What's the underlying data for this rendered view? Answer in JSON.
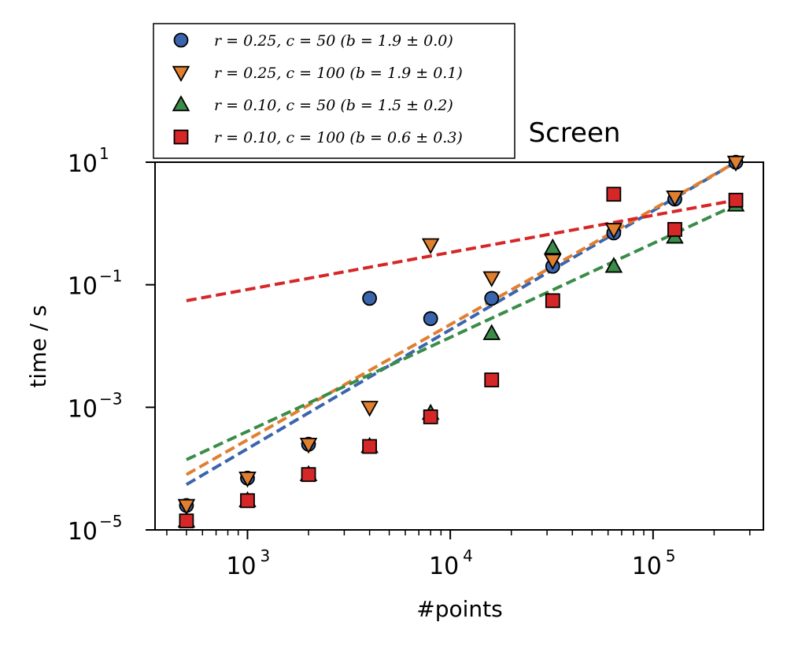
{
  "chart_data": {
    "type": "scatter",
    "title": "Screen",
    "xlabel": "#points",
    "ylabel": "time / s",
    "xscale": "log",
    "yscale": "log",
    "xlim": [
      350,
      350000
    ],
    "ylim": [
      1e-05,
      10
    ],
    "x_ticks": [
      {
        "value": 1000,
        "base": "10",
        "exp": "3"
      },
      {
        "value": 10000,
        "base": "10",
        "exp": "4"
      },
      {
        "value": 100000,
        "base": "10",
        "exp": "5"
      }
    ],
    "y_ticks": [
      {
        "value": 1e-05,
        "base": "10",
        "exp": "−5"
      },
      {
        "value": 0.001,
        "base": "10",
        "exp": "−3"
      },
      {
        "value": 0.1,
        "base": "10",
        "exp": "−1"
      },
      {
        "value": 10,
        "base": "10",
        "exp": "1"
      }
    ],
    "legend_position": "above-left",
    "series": [
      {
        "name": "r = 0.25, c = 50 (b = 1.9 ± 0.0)",
        "label_main": "r = 0.25, c = 50",
        "label_fit": "(b = 1.9 ± 0.0)",
        "marker": "circle",
        "color": "#3a65ad",
        "x": [
          500,
          1000,
          2000,
          4000,
          8000,
          16000,
          32000,
          64000,
          128000,
          256000
        ],
        "y": [
          2.5e-05,
          7e-05,
          0.00025,
          0.06,
          0.028,
          0.06,
          0.2,
          0.7,
          2.5,
          10
        ],
        "fit": {
          "x0": 500,
          "y0": 5.5e-05,
          "x1": 256000,
          "y1": 10
        }
      },
      {
        "name": "r = 0.25, c = 100 (b = 1.9 ± 0.1)",
        "label_main": "r = 0.25, c = 100",
        "label_fit": "(b = 1.9 ± 0.1)",
        "marker": "triangle-down",
        "color": "#e07f30",
        "x": [
          500,
          1000,
          2000,
          4000,
          8000,
          16000,
          32000,
          64000,
          128000,
          256000
        ],
        "y": [
          2.5e-05,
          7e-05,
          0.00025,
          0.001,
          0.45,
          0.13,
          0.25,
          0.8,
          2.7,
          10
        ],
        "fit": {
          "x0": 500,
          "y0": 8e-05,
          "x1": 256000,
          "y1": 10
        }
      },
      {
        "name": "r = 0.10, c = 50 (b = 1.5 ± 0.2)",
        "label_main": "r = 0.10, c = 50",
        "label_fit": "(b = 1.5 ± 0.2)",
        "marker": "triangle-up",
        "color": "#3a8c48",
        "x": [
          500,
          1000,
          2000,
          4000,
          8000,
          16000,
          32000,
          64000,
          128000,
          256000
        ],
        "y": [
          1.4e-05,
          3e-05,
          8e-05,
          0.00023,
          0.0008,
          0.016,
          0.4,
          0.2,
          0.6,
          2
        ],
        "fit": {
          "x0": 500,
          "y0": 0.00014,
          "x1": 256000,
          "y1": 2
        }
      },
      {
        "name": "r = 0.10, c = 100 (b = 0.6 ± 0.3)",
        "label_main": "r = 0.10, c = 100",
        "label_fit": "(b = 0.6 ± 0.3)",
        "marker": "square",
        "color": "#d62728",
        "x": [
          500,
          1000,
          2000,
          4000,
          8000,
          16000,
          32000,
          64000,
          128000,
          256000
        ],
        "y": [
          1.4e-05,
          3e-05,
          8e-05,
          0.00023,
          0.0007,
          0.0028,
          0.055,
          3,
          0.8,
          2.4
        ],
        "fit": {
          "x0": 500,
          "y0": 0.055,
          "x1": 256000,
          "y1": 2.4
        }
      }
    ]
  }
}
